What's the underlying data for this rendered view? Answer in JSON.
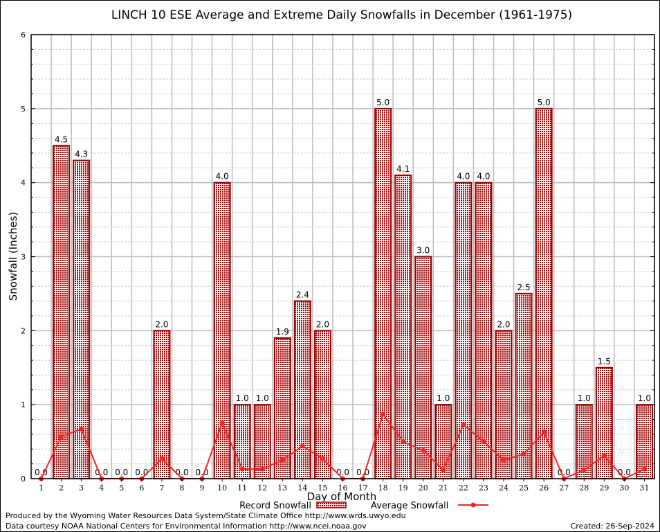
{
  "chart_data": {
    "type": "bar",
    "title": "LINCH 10 ESE Average and Extreme Daily Snowfalls in December (1961-1975)",
    "xlabel": "Day of Month",
    "ylabel": "Snowfall (Inches)",
    "ylim": [
      0,
      6
    ],
    "yticks": [
      "0",
      "1",
      "2",
      "3",
      "4",
      "5",
      "6"
    ],
    "grid": true,
    "categories": [
      "1",
      "2",
      "3",
      "4",
      "5",
      "6",
      "7",
      "8",
      "9",
      "10",
      "11",
      "12",
      "13",
      "14",
      "15",
      "16",
      "17",
      "18",
      "19",
      "20",
      "21",
      "22",
      "23",
      "24",
      "25",
      "26",
      "27",
      "28",
      "29",
      "30",
      "31"
    ],
    "series": [
      {
        "name": "Record Snowfall",
        "type": "bar",
        "color": "#990000",
        "values": [
          0,
          4.5,
          4.3,
          0,
          0,
          0,
          2.0,
          0,
          0,
          4.0,
          1.0,
          1.0,
          1.9,
          2.4,
          2.0,
          0,
          0,
          5.0,
          4.1,
          3.0,
          1.0,
          4.0,
          4.0,
          2.0,
          2.5,
          5.0,
          0,
          1.0,
          1.5,
          0,
          1.0
        ],
        "labels": [
          "0.0",
          "4.5",
          "4.3",
          "0.0",
          "0.0",
          "0.0",
          "2.0",
          "0.0",
          "0.0",
          "4.0",
          "1.0",
          "1.0",
          "1.9",
          "2.4",
          "2.0",
          "0.0",
          "0.0",
          "5.0",
          "4.1",
          "3.0",
          "1.0",
          "4.0",
          "4.0",
          "2.0",
          "2.5",
          "5.0",
          "0.0",
          "1.0",
          "1.5",
          "0.0",
          "1.0"
        ]
      },
      {
        "name": "Average Snowfall",
        "type": "line",
        "color": "#ff2020",
        "values": [
          0,
          0.57,
          0.67,
          0,
          0,
          0,
          0.27,
          0,
          0,
          0.75,
          0.13,
          0.13,
          0.25,
          0.44,
          0.27,
          0,
          0,
          0.87,
          0.5,
          0.38,
          0.12,
          0.73,
          0.5,
          0.25,
          0.33,
          0.63,
          0,
          0.12,
          0.31,
          0,
          0.13
        ]
      }
    ],
    "legend": "bottom-center"
  },
  "footer": {
    "produced": "Produced by the Wyoming Water Resources Data System/State Climate Office http://www.wrds.uwyo.edu",
    "courtesy": "Data courtesy NOAA National Centers for Environmental Information http://www.ncei.noaa.gov",
    "created": "Created:  26-Sep-2024"
  }
}
